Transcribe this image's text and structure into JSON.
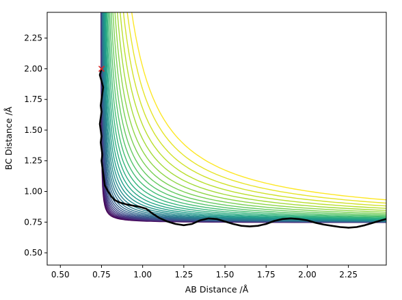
{
  "chart_data": {
    "type": "contour",
    "title": "",
    "xlabel": "AB Distance /Å",
    "ylabel": "BC Distance /Å",
    "xlim": [
      0.42,
      2.48
    ],
    "ylim": [
      0.4,
      2.46
    ],
    "x_ticks": [
      0.5,
      0.75,
      1.0,
      1.25,
      1.5,
      1.75,
      2.0,
      2.25
    ],
    "x_tick_labels": [
      "0.50",
      "0.75",
      "1.00",
      "1.25",
      "1.50",
      "1.75",
      "2.00",
      "2.25"
    ],
    "y_ticks": [
      0.5,
      0.75,
      1.0,
      1.25,
      1.5,
      1.75,
      2.0,
      2.25
    ],
    "y_tick_labels": [
      "0.50",
      "0.75",
      "1.00",
      "1.25",
      "1.50",
      "1.75",
      "2.00",
      "2.25"
    ],
    "grid": false,
    "colormap": "viridis",
    "contour_count": 30,
    "asymptote": 0.745,
    "start_point": {
      "x": 0.75,
      "y": 2.0,
      "marker": "x",
      "color": "#d62728"
    },
    "trajectory": {
      "color": "#000000",
      "x": [
        0.75,
        0.74,
        0.75,
        0.76,
        0.755,
        0.75,
        0.745,
        0.75,
        0.745,
        0.74,
        0.745,
        0.75,
        0.745,
        0.75,
        0.755,
        0.75,
        0.755,
        0.76,
        0.765,
        0.77,
        0.79,
        0.81,
        0.83,
        0.86,
        0.9,
        0.94,
        0.98,
        1.02,
        1.06,
        1.1,
        1.15,
        1.2,
        1.25,
        1.3,
        1.35,
        1.4,
        1.45,
        1.5,
        1.55,
        1.6,
        1.65,
        1.7,
        1.75,
        1.8,
        1.85,
        1.9,
        1.95,
        2.0,
        2.05,
        2.1,
        2.15,
        2.2,
        2.25,
        2.3,
        2.35,
        2.4,
        2.45,
        2.48
      ],
      "y": [
        2.0,
        1.95,
        1.9,
        1.85,
        1.8,
        1.75,
        1.7,
        1.65,
        1.6,
        1.55,
        1.5,
        1.45,
        1.4,
        1.35,
        1.3,
        1.25,
        1.2,
        1.15,
        1.1,
        1.05,
        1.0,
        0.96,
        0.93,
        0.91,
        0.895,
        0.885,
        0.875,
        0.86,
        0.82,
        0.785,
        0.755,
        0.735,
        0.725,
        0.735,
        0.765,
        0.78,
        0.775,
        0.755,
        0.735,
        0.72,
        0.715,
        0.72,
        0.735,
        0.76,
        0.775,
        0.78,
        0.775,
        0.765,
        0.745,
        0.73,
        0.72,
        0.71,
        0.705,
        0.71,
        0.725,
        0.745,
        0.765,
        0.775
      ]
    }
  }
}
